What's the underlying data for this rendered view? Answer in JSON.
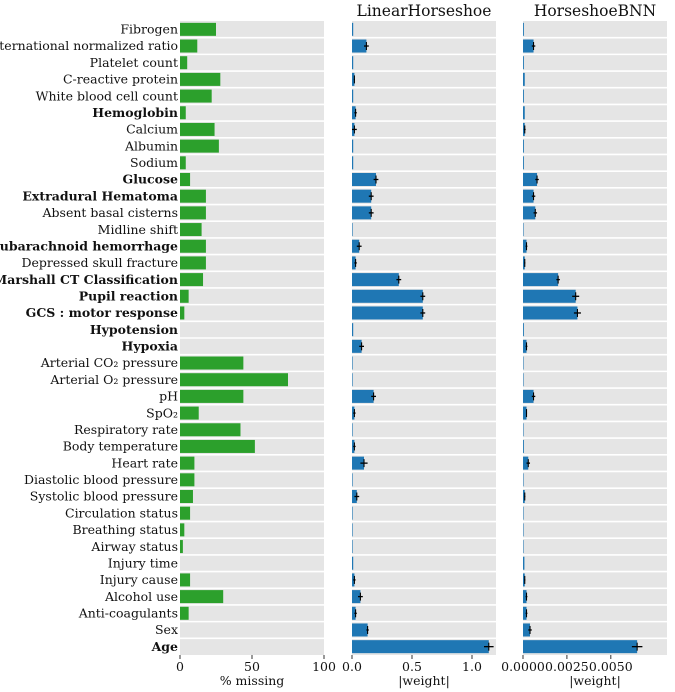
{
  "chart_data": {
    "type": "bar",
    "orientation": "horizontal",
    "grid": true,
    "categories": [
      {
        "label": "Fibrogen",
        "bold": false
      },
      {
        "label": "International normalized ratio",
        "bold": false
      },
      {
        "label": "Platelet count",
        "bold": false
      },
      {
        "label": "C-reactive protein",
        "bold": false
      },
      {
        "label": "White blood cell count",
        "bold": false
      },
      {
        "label": "Hemoglobin",
        "bold": true
      },
      {
        "label": "Calcium",
        "bold": false
      },
      {
        "label": "Albumin",
        "bold": false
      },
      {
        "label": "Sodium",
        "bold": false
      },
      {
        "label": "Glucose",
        "bold": true
      },
      {
        "label": "Extradural Hematoma",
        "bold": true
      },
      {
        "label": "Absent basal cisterns",
        "bold": false
      },
      {
        "label": "Midline shift",
        "bold": false
      },
      {
        "label": "Subarachnoid hemorrhage",
        "bold": true
      },
      {
        "label": "Depressed skull fracture",
        "bold": false
      },
      {
        "label": "Marshall CT Classification",
        "bold": true
      },
      {
        "label": "Pupil reaction",
        "bold": true
      },
      {
        "label": "GCS : motor response",
        "bold": true
      },
      {
        "label": "Hypotension",
        "bold": true
      },
      {
        "label": "Hypoxia",
        "bold": true
      },
      {
        "label": "Arterial CO₂ pressure",
        "bold": false
      },
      {
        "label": "Arterial O₂ pressure",
        "bold": false
      },
      {
        "label": "pH",
        "bold": false
      },
      {
        "label": "SpO₂",
        "bold": false
      },
      {
        "label": "Respiratory rate",
        "bold": false
      },
      {
        "label": "Body temperature",
        "bold": false
      },
      {
        "label": "Heart rate",
        "bold": false
      },
      {
        "label": "Diastolic blood pressure",
        "bold": false
      },
      {
        "label": "Systolic blood pressure",
        "bold": false
      },
      {
        "label": "Circulation status",
        "bold": false
      },
      {
        "label": "Breathing status",
        "bold": false
      },
      {
        "label": "Airway status",
        "bold": false
      },
      {
        "label": "Injury time",
        "bold": false
      },
      {
        "label": "Injury cause",
        "bold": false
      },
      {
        "label": "Alcohol use",
        "bold": false
      },
      {
        "label": "Anti-coagulants",
        "bold": false
      },
      {
        "label": "Sex",
        "bold": false
      },
      {
        "label": "Age",
        "bold": true
      }
    ],
    "panels": [
      {
        "title": "",
        "xlabel": "% missing",
        "xlim": [
          0,
          100
        ],
        "xticks": [
          0,
          50,
          100
        ],
        "tick_labels": [
          "0",
          "50",
          "100"
        ],
        "color": "#2ca02c",
        "values": [
          25,
          12,
          5,
          28,
          22,
          4,
          24,
          27,
          4,
          7,
          18,
          18,
          15,
          18,
          18,
          16,
          6,
          3,
          0,
          0,
          44,
          75,
          44,
          13,
          42,
          52,
          10,
          10,
          9,
          7,
          3,
          2,
          0,
          7,
          30,
          6,
          0,
          0
        ],
        "errors": null
      },
      {
        "title": "LinearHorseshoe",
        "xlabel": "|weight|",
        "xlim": [
          0,
          1.2
        ],
        "xticks": [
          0,
          0.5,
          1.0
        ],
        "tick_labels": [
          "0.0",
          "0.5",
          "1.0"
        ],
        "color": "#1f77b4",
        "values": [
          0.01,
          0.12,
          0.01,
          0.02,
          0.01,
          0.03,
          0.02,
          0.01,
          0.01,
          0.2,
          0.16,
          0.16,
          0.005,
          0.06,
          0.03,
          0.39,
          0.59,
          0.59,
          0.01,
          0.08,
          0.005,
          0.005,
          0.18,
          0.02,
          0.005,
          0.02,
          0.1,
          0.005,
          0.04,
          0.005,
          0.005,
          0.005,
          0.01,
          0.02,
          0.07,
          0.03,
          0.13,
          1.14
        ],
        "errors": [
          0,
          0.02,
          0,
          0.005,
          0,
          0.01,
          0.02,
          0,
          0,
          0.02,
          0.02,
          0.02,
          0,
          0.02,
          0.01,
          0.02,
          0.02,
          0.02,
          0,
          0.02,
          0,
          0,
          0.02,
          0.01,
          0,
          0.01,
          0.03,
          0,
          0.02,
          0,
          0,
          0,
          0,
          0.01,
          0.02,
          0.01,
          0.01,
          0.04
        ]
      },
      {
        "title": "HorseshoeBNN",
        "xlabel": "|weight|",
        "xlim": [
          0,
          0.0082
        ],
        "xticks": [
          0,
          0.0025,
          0.005
        ],
        "tick_labels": [
          "0.0000",
          "0.0025",
          "0.0050"
        ],
        "color": "#1f77b4",
        "values": [
          5e-05,
          0.0006,
          5e-05,
          0.0001,
          5e-05,
          0.0001,
          0.0001,
          5e-05,
          5e-05,
          0.0008,
          0.0006,
          0.0007,
          3e-05,
          0.0002,
          0.0001,
          0.002,
          0.003,
          0.0031,
          5e-05,
          0.0002,
          3e-05,
          3e-05,
          0.0006,
          0.0002,
          3e-05,
          5e-05,
          0.0003,
          3e-05,
          0.0001,
          3e-05,
          3e-05,
          3e-05,
          8e-05,
          0.0001,
          0.0002,
          0.0002,
          0.0004,
          0.0065
        ],
        "errors": [
          0,
          0.0001,
          0,
          0,
          0,
          0,
          5e-05,
          0,
          0,
          0.0001,
          0.0001,
          0.0001,
          0,
          5e-05,
          3e-05,
          0.0001,
          0.0002,
          0.0002,
          0,
          5e-05,
          0,
          0,
          0.0001,
          3e-05,
          0,
          0,
          0.0001,
          0,
          3e-05,
          0,
          0,
          0,
          0,
          3e-05,
          5e-05,
          5e-05,
          0.0001,
          0.0003
        ]
      }
    ]
  }
}
